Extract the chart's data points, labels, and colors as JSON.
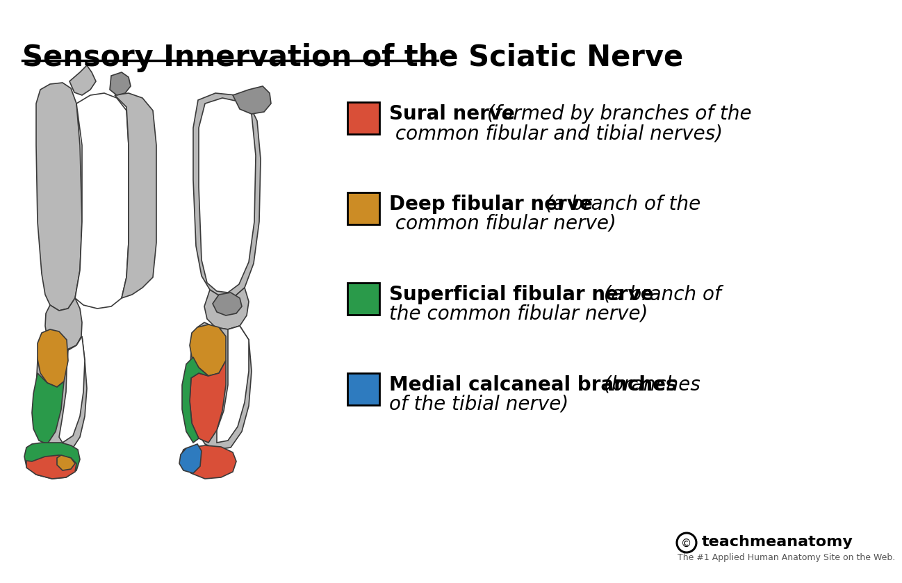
{
  "title": "Sensory Innervation of the Sciatic Nerve",
  "background_color": "#ffffff",
  "title_fontsize": 30,
  "legend_items": [
    {
      "color": "#d94f38",
      "bold_text": "Sural nerve",
      "italic_text": " (formed by branches of the",
      "italic_text2": " common fibular and tibial nerves)"
    },
    {
      "color": "#cc8c25",
      "bold_text": "Deep fibular nerve",
      "italic_text": " (a branch of the",
      "italic_text2": " common fibular nerve)"
    },
    {
      "color": "#2a9a4a",
      "bold_text": "Superficial fibular nerve",
      "italic_text": " (a branch of",
      "italic_text2": "the common fibular nerve)"
    },
    {
      "color": "#2e7bbf",
      "bold_text": "Medial calcaneal branches",
      "italic_text": " (branches",
      "italic_text2": "of the tibial nerve)"
    }
  ],
  "watermark_bold": "teachmeanatomy",
  "watermark_small": "The #1 Applied Human Anatomy Site on the Web.",
  "leg_gray": "#b8b8b8",
  "leg_dark_gray": "#909090",
  "leg_outline": "#3a3a3a",
  "sural_color": "#d94f38",
  "deep_fibular_color": "#cc8c25",
  "superficial_fibular_color": "#2a9a4a",
  "medial_calcaneal_color": "#2e7bbf"
}
